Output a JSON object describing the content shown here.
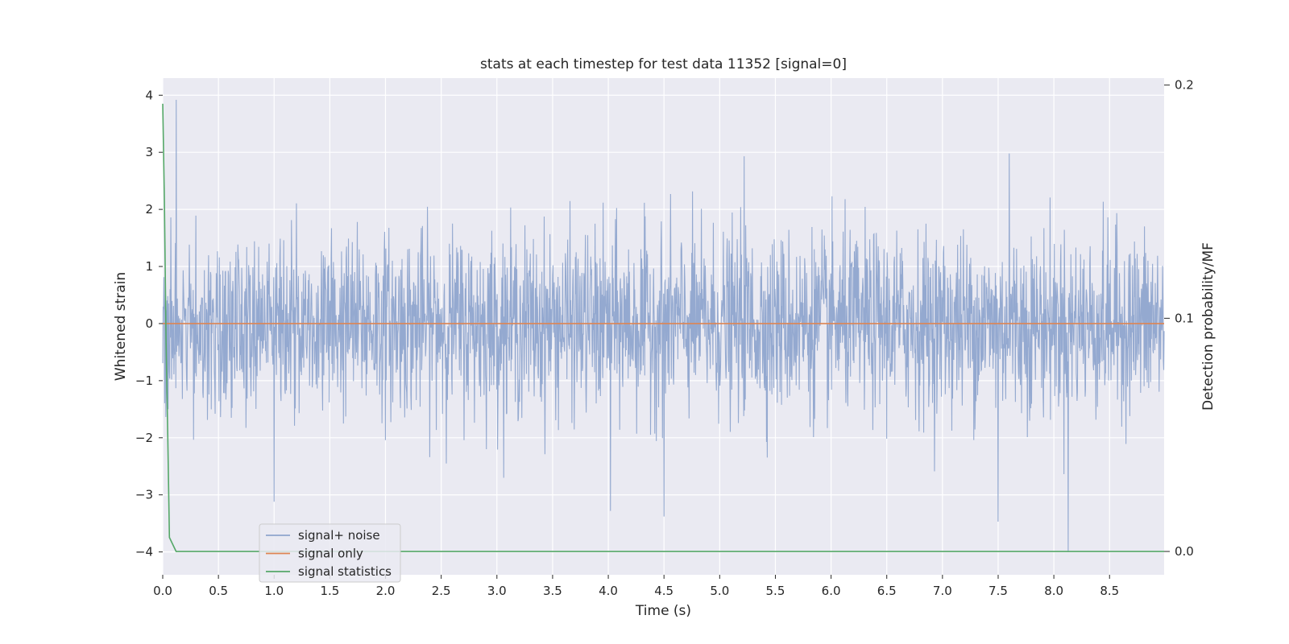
{
  "chart_data": {
    "type": "line",
    "title": "stats at each timestep for test data 11352 [signal=0]",
    "xlabel": "Time (s)",
    "ylabel": "Whitened strain",
    "y2label": "Detection probability/MF",
    "xlim": [
      0,
      8.99
    ],
    "ylim": [
      -4.4,
      4.3
    ],
    "y2lim": [
      -0.01,
      0.203
    ],
    "x_ticks": [
      0.0,
      0.5,
      1.0,
      1.5,
      2.0,
      2.5,
      3.0,
      3.5,
      4.0,
      4.5,
      5.0,
      5.5,
      6.0,
      6.5,
      7.0,
      7.5,
      8.0,
      8.5
    ],
    "x_tick_labels": [
      "0.0",
      "0.5",
      "1.0",
      "1.5",
      "2.0",
      "2.5",
      "3.0",
      "3.5",
      "4.0",
      "4.5",
      "5.0",
      "5.5",
      "6.0",
      "6.5",
      "7.0",
      "7.5",
      "8.0",
      "8.5"
    ],
    "y_ticks": [
      4,
      3,
      2,
      1,
      0,
      -1,
      -2,
      -3,
      -4
    ],
    "y_tick_labels": [
      "4",
      "3",
      "2",
      "1",
      "0",
      "−1",
      "−2",
      "−3",
      "−4"
    ],
    "y2_ticks": [
      0.2,
      0.1,
      0.0
    ],
    "y2_tick_labels": [
      "0.2",
      "0.1",
      "0.0"
    ],
    "grid": true,
    "legend_position": "lower-left",
    "series": [
      {
        "name": "signal+ noise",
        "axis": "left",
        "color": "#8fa5cd",
        "style": "dense random noise, roughly normal with std 0.8, spanning 0 to 8.99 s",
        "peaks": [
          {
            "x": 0.12,
            "y": 3.92
          },
          {
            "x": 5.22,
            "y": 2.93
          },
          {
            "x": 7.6,
            "y": 2.98
          },
          {
            "x": 1.0,
            "y": -3.12
          },
          {
            "x": 4.02,
            "y": -3.28
          },
          {
            "x": 4.5,
            "y": -3.38
          },
          {
            "x": 7.5,
            "y": -3.47
          },
          {
            "x": 8.13,
            "y": -4.0
          }
        ]
      },
      {
        "name": "signal only",
        "axis": "left",
        "color": "#dd8452",
        "x": [
          0.0,
          8.99
        ],
        "y": [
          0.0,
          0.0
        ]
      },
      {
        "name": "signal statistics",
        "axis": "right",
        "color": "#55a868",
        "x": [
          0.0,
          0.015,
          0.03,
          0.045,
          0.06,
          0.12,
          8.99
        ],
        "y": [
          0.192,
          0.15,
          0.09,
          0.05,
          0.006,
          0.0,
          0.0
        ]
      }
    ]
  }
}
